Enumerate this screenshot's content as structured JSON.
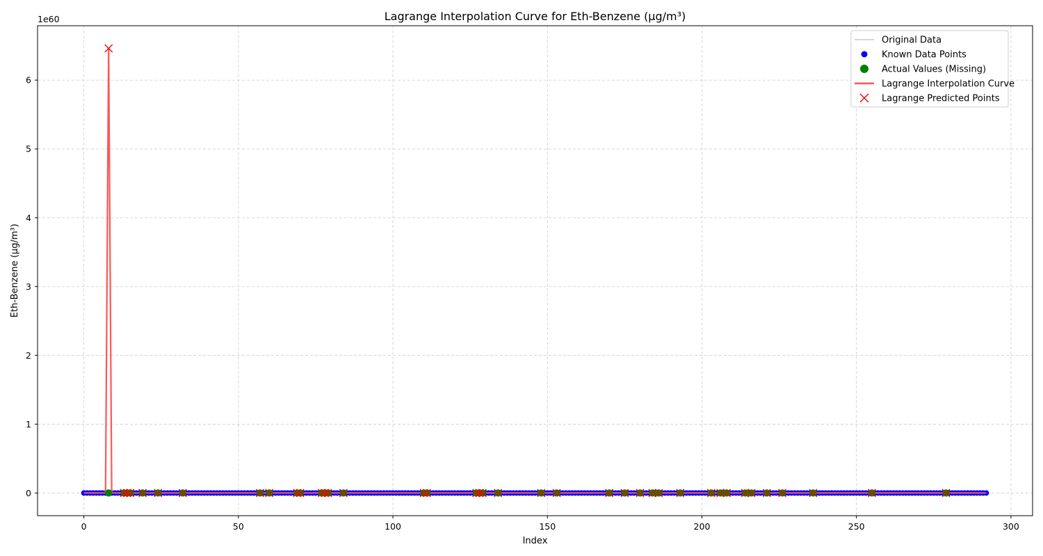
{
  "chart_data": {
    "type": "line",
    "title": "Lagrange Interpolation Curve for Eth-Benzene (µg/m³)",
    "xlabel": "Index",
    "ylabel": "Eth-Benzene (µg/m³)",
    "y_scale_label": "1e60",
    "xlim": [
      -15,
      307
    ],
    "ylim": [
      -0.33,
      6.79
    ],
    "x_ticks": [
      0,
      50,
      100,
      150,
      200,
      250,
      300
    ],
    "y_ticks": [
      0,
      1,
      2,
      3,
      4,
      5,
      6
    ],
    "grid": true,
    "legend_position": "top-right",
    "n_points": 293,
    "series": [
      {
        "name": "Original Data",
        "style": "thin line",
        "color": "#b0b0b0"
      },
      {
        "name": "Known Data Points",
        "style": "markers",
        "color": "#0000ff"
      },
      {
        "name": "Actual Values (Missing)",
        "style": "markers",
        "color": "#008000"
      },
      {
        "name": "Lagrange Interpolation Curve",
        "style": "line",
        "color": "#ff5555"
      },
      {
        "name": "Lagrange Predicted Points",
        "style": "x-markers",
        "color": "#ff0000"
      }
    ],
    "missing_indices": [
      8,
      13,
      14,
      15,
      19,
      24,
      32,
      57,
      60,
      69,
      70,
      77,
      78,
      79,
      84,
      110,
      111,
      127,
      128,
      129,
      134,
      148,
      153,
      170,
      175,
      180,
      184,
      186,
      193,
      203,
      206,
      208,
      214,
      216,
      221,
      226,
      236,
      255,
      279
    ],
    "predicted_values": {
      "8": 6.46
    },
    "other_values_approx": 0
  }
}
